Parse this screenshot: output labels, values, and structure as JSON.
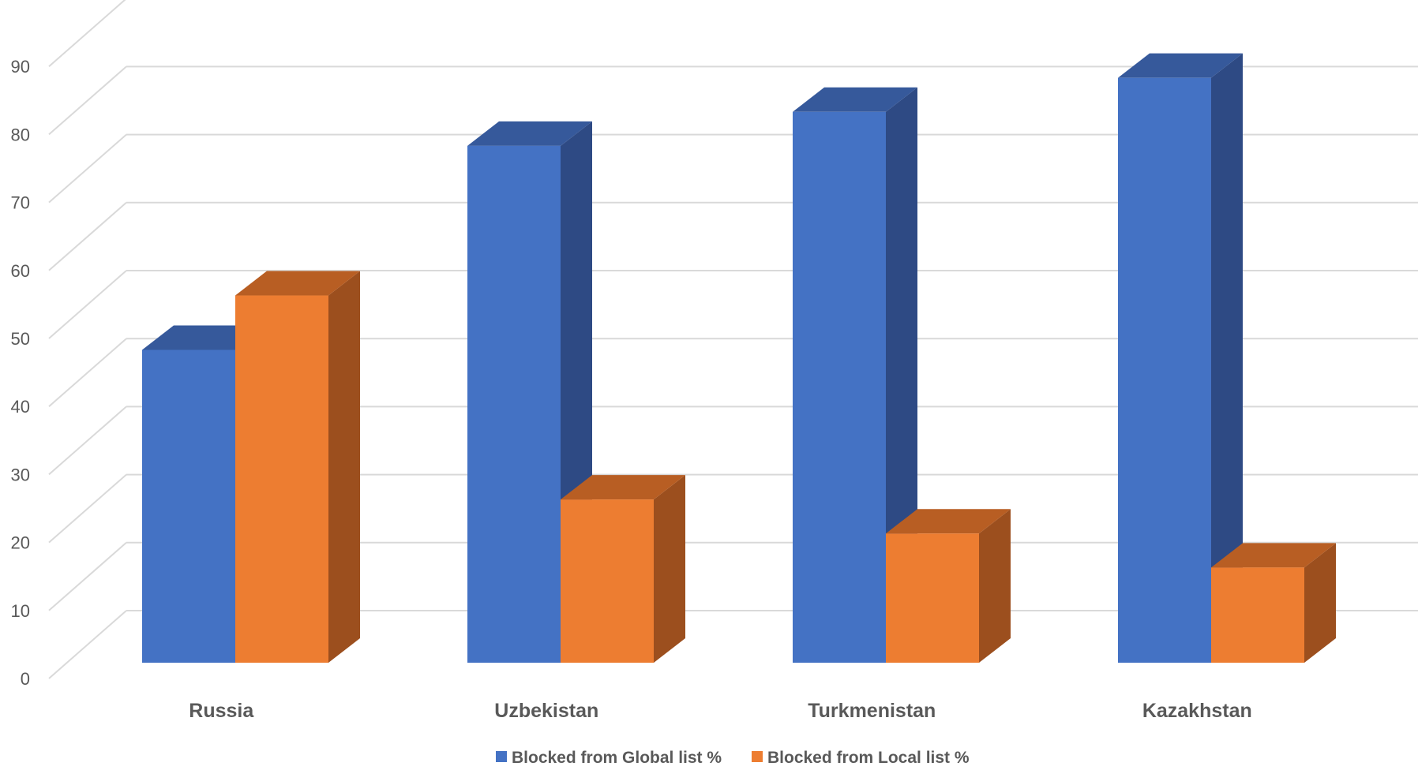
{
  "chart_data": {
    "type": "bar",
    "style": "3d-clustered-column",
    "categories": [
      "Russia",
      "Uzbekistan",
      "Turkmenistan",
      "Kazakhstan"
    ],
    "series": [
      {
        "name": "Blocked from Global list %",
        "values": [
          46,
          76,
          81,
          86
        ],
        "color": "#4472C4",
        "side_color": "#2E4A84",
        "top_color": "#36599B"
      },
      {
        "name": "Blocked from Local list %",
        "values": [
          54,
          24,
          19,
          14
        ],
        "color": "#ED7D31",
        "side_color": "#9C4F1E",
        "top_color": "#B85E23"
      }
    ],
    "ylim": [
      0,
      100
    ],
    "yticks": [
      0,
      10,
      20,
      30,
      40,
      50,
      60,
      70,
      80,
      90
    ],
    "grid": true,
    "legend": "bottom"
  }
}
